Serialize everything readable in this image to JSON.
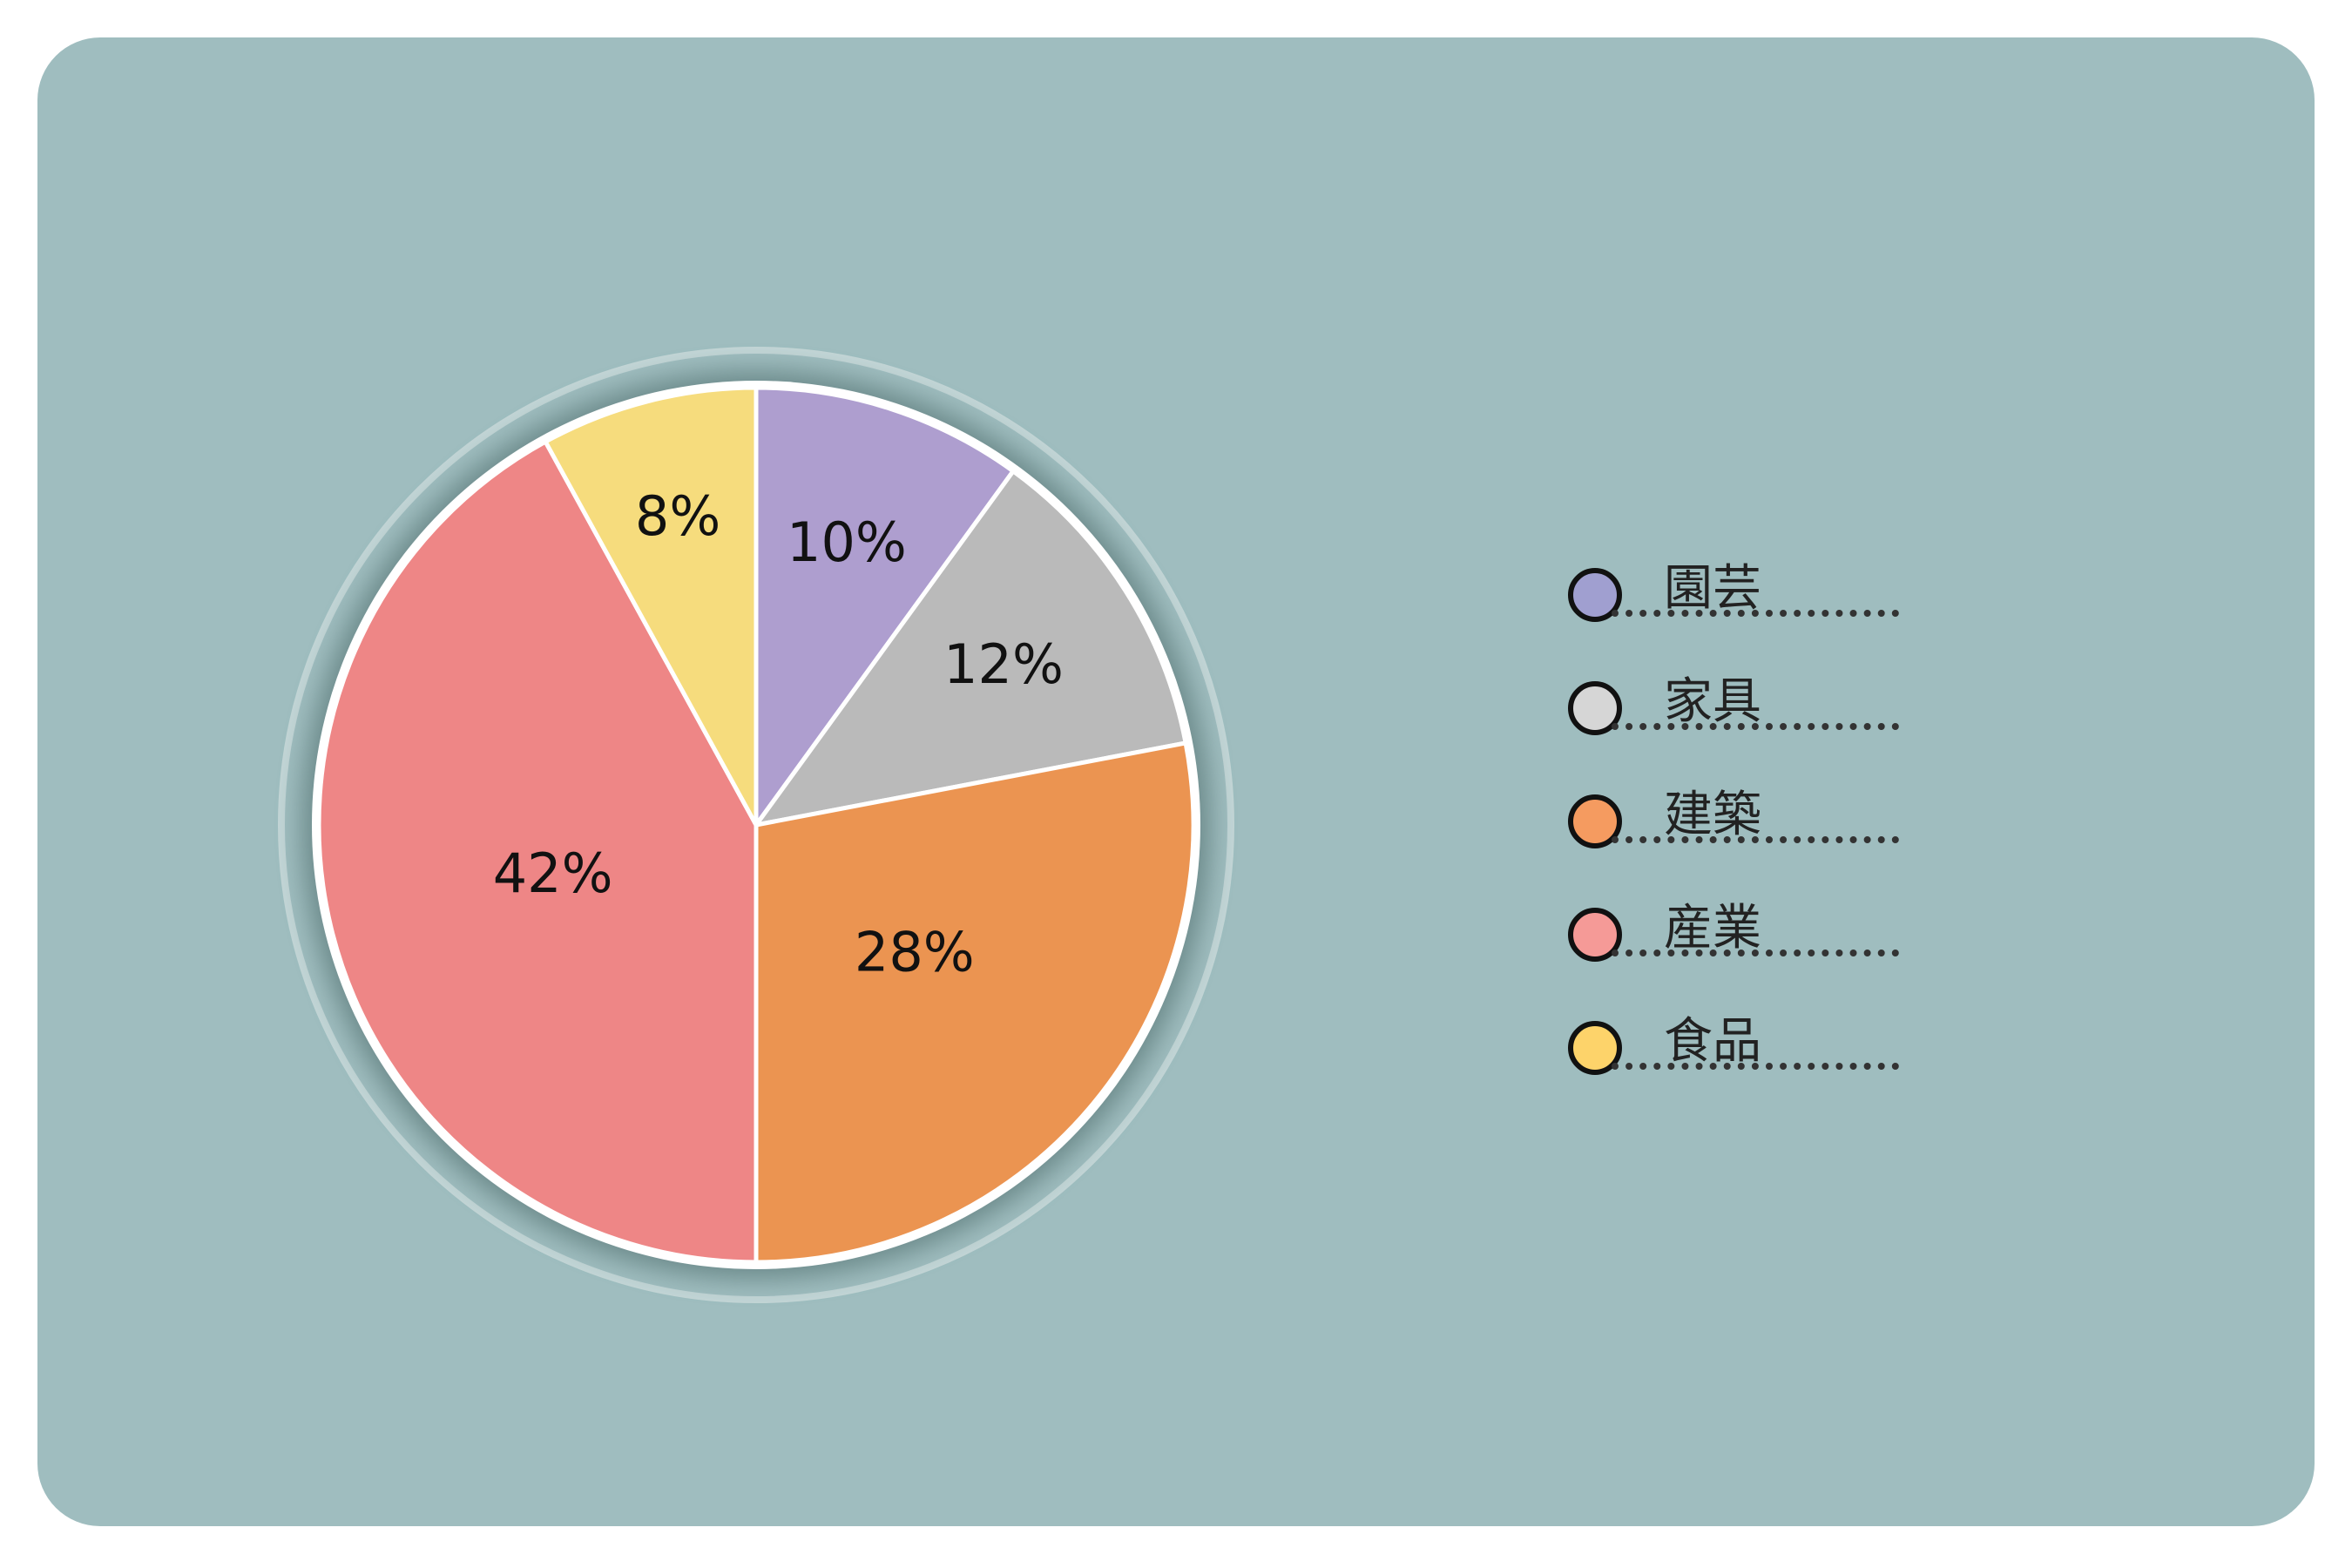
{
  "chart_data": {
    "type": "pie",
    "slices": [
      {
        "label": "園芸",
        "value": 10,
        "value_label": "10%",
        "color": "#ae9ecf"
      },
      {
        "label": "家具",
        "value": 12,
        "value_label": "12%",
        "color": "#bababa"
      },
      {
        "label": "建築",
        "value": 28,
        "value_label": "28%",
        "color": "#eb9451"
      },
      {
        "label": "産業",
        "value": 42,
        "value_label": "42%",
        "color": "#ee8686"
      },
      {
        "label": "食品",
        "value": 8,
        "value_label": "8%",
        "color": "#f6dc7d"
      }
    ],
    "legend": {
      "placement": "right",
      "items": [
        {
          "label": "園芸",
          "color": "#a09fd0"
        },
        {
          "label": "家具",
          "color": "#d6d6d6"
        },
        {
          "label": "建築",
          "color": "#f59b60"
        },
        {
          "label": "産業",
          "color": "#f59a97"
        },
        {
          "label": "食品",
          "color": "#fdd36a"
        }
      ]
    }
  },
  "colors": {
    "card_background": "#9fbdbf",
    "slice_border": "#ffffff",
    "halo": "#c2d5d6"
  }
}
